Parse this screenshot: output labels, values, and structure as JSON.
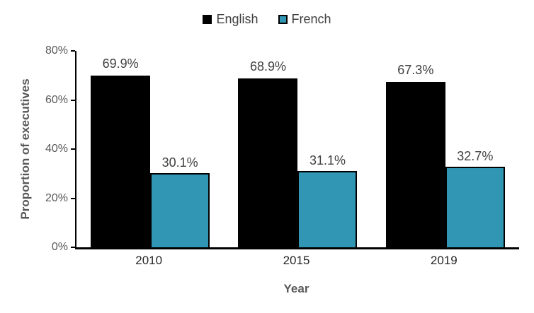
{
  "chart_data": {
    "type": "bar",
    "title": "",
    "categories": [
      "2010",
      "2015",
      "2019"
    ],
    "series": [
      {
        "name": "English",
        "color": "#000000",
        "outlined": false,
        "values": [
          69.9,
          68.9,
          67.3
        ],
        "labels": [
          "69.9%",
          "68.9%",
          "67.3%"
        ]
      },
      {
        "name": "French",
        "color": "#3096B4",
        "outlined": true,
        "values": [
          30.1,
          31.1,
          32.7
        ],
        "labels": [
          "30.1%",
          "31.1%",
          "32.7%"
        ]
      }
    ],
    "xlabel": "Year",
    "ylabel": "Proportion of executives",
    "ylim": [
      0,
      80
    ],
    "yticks": [
      0,
      20,
      40,
      60,
      80
    ],
    "ytick_labels": [
      "0%",
      "20%",
      "40%",
      "60%",
      "80%"
    ],
    "grid": false,
    "legend_position": "top",
    "bar_outline_color": "#000000"
  },
  "style": {
    "accent_teal": "#3096B4",
    "bar_black": "#000000",
    "data_label_color": "#404040",
    "ytick_label_color": "#595959",
    "xtick_label_color": "#262626",
    "axis_title_color": "#595959",
    "axis_line_color": "#000000"
  }
}
